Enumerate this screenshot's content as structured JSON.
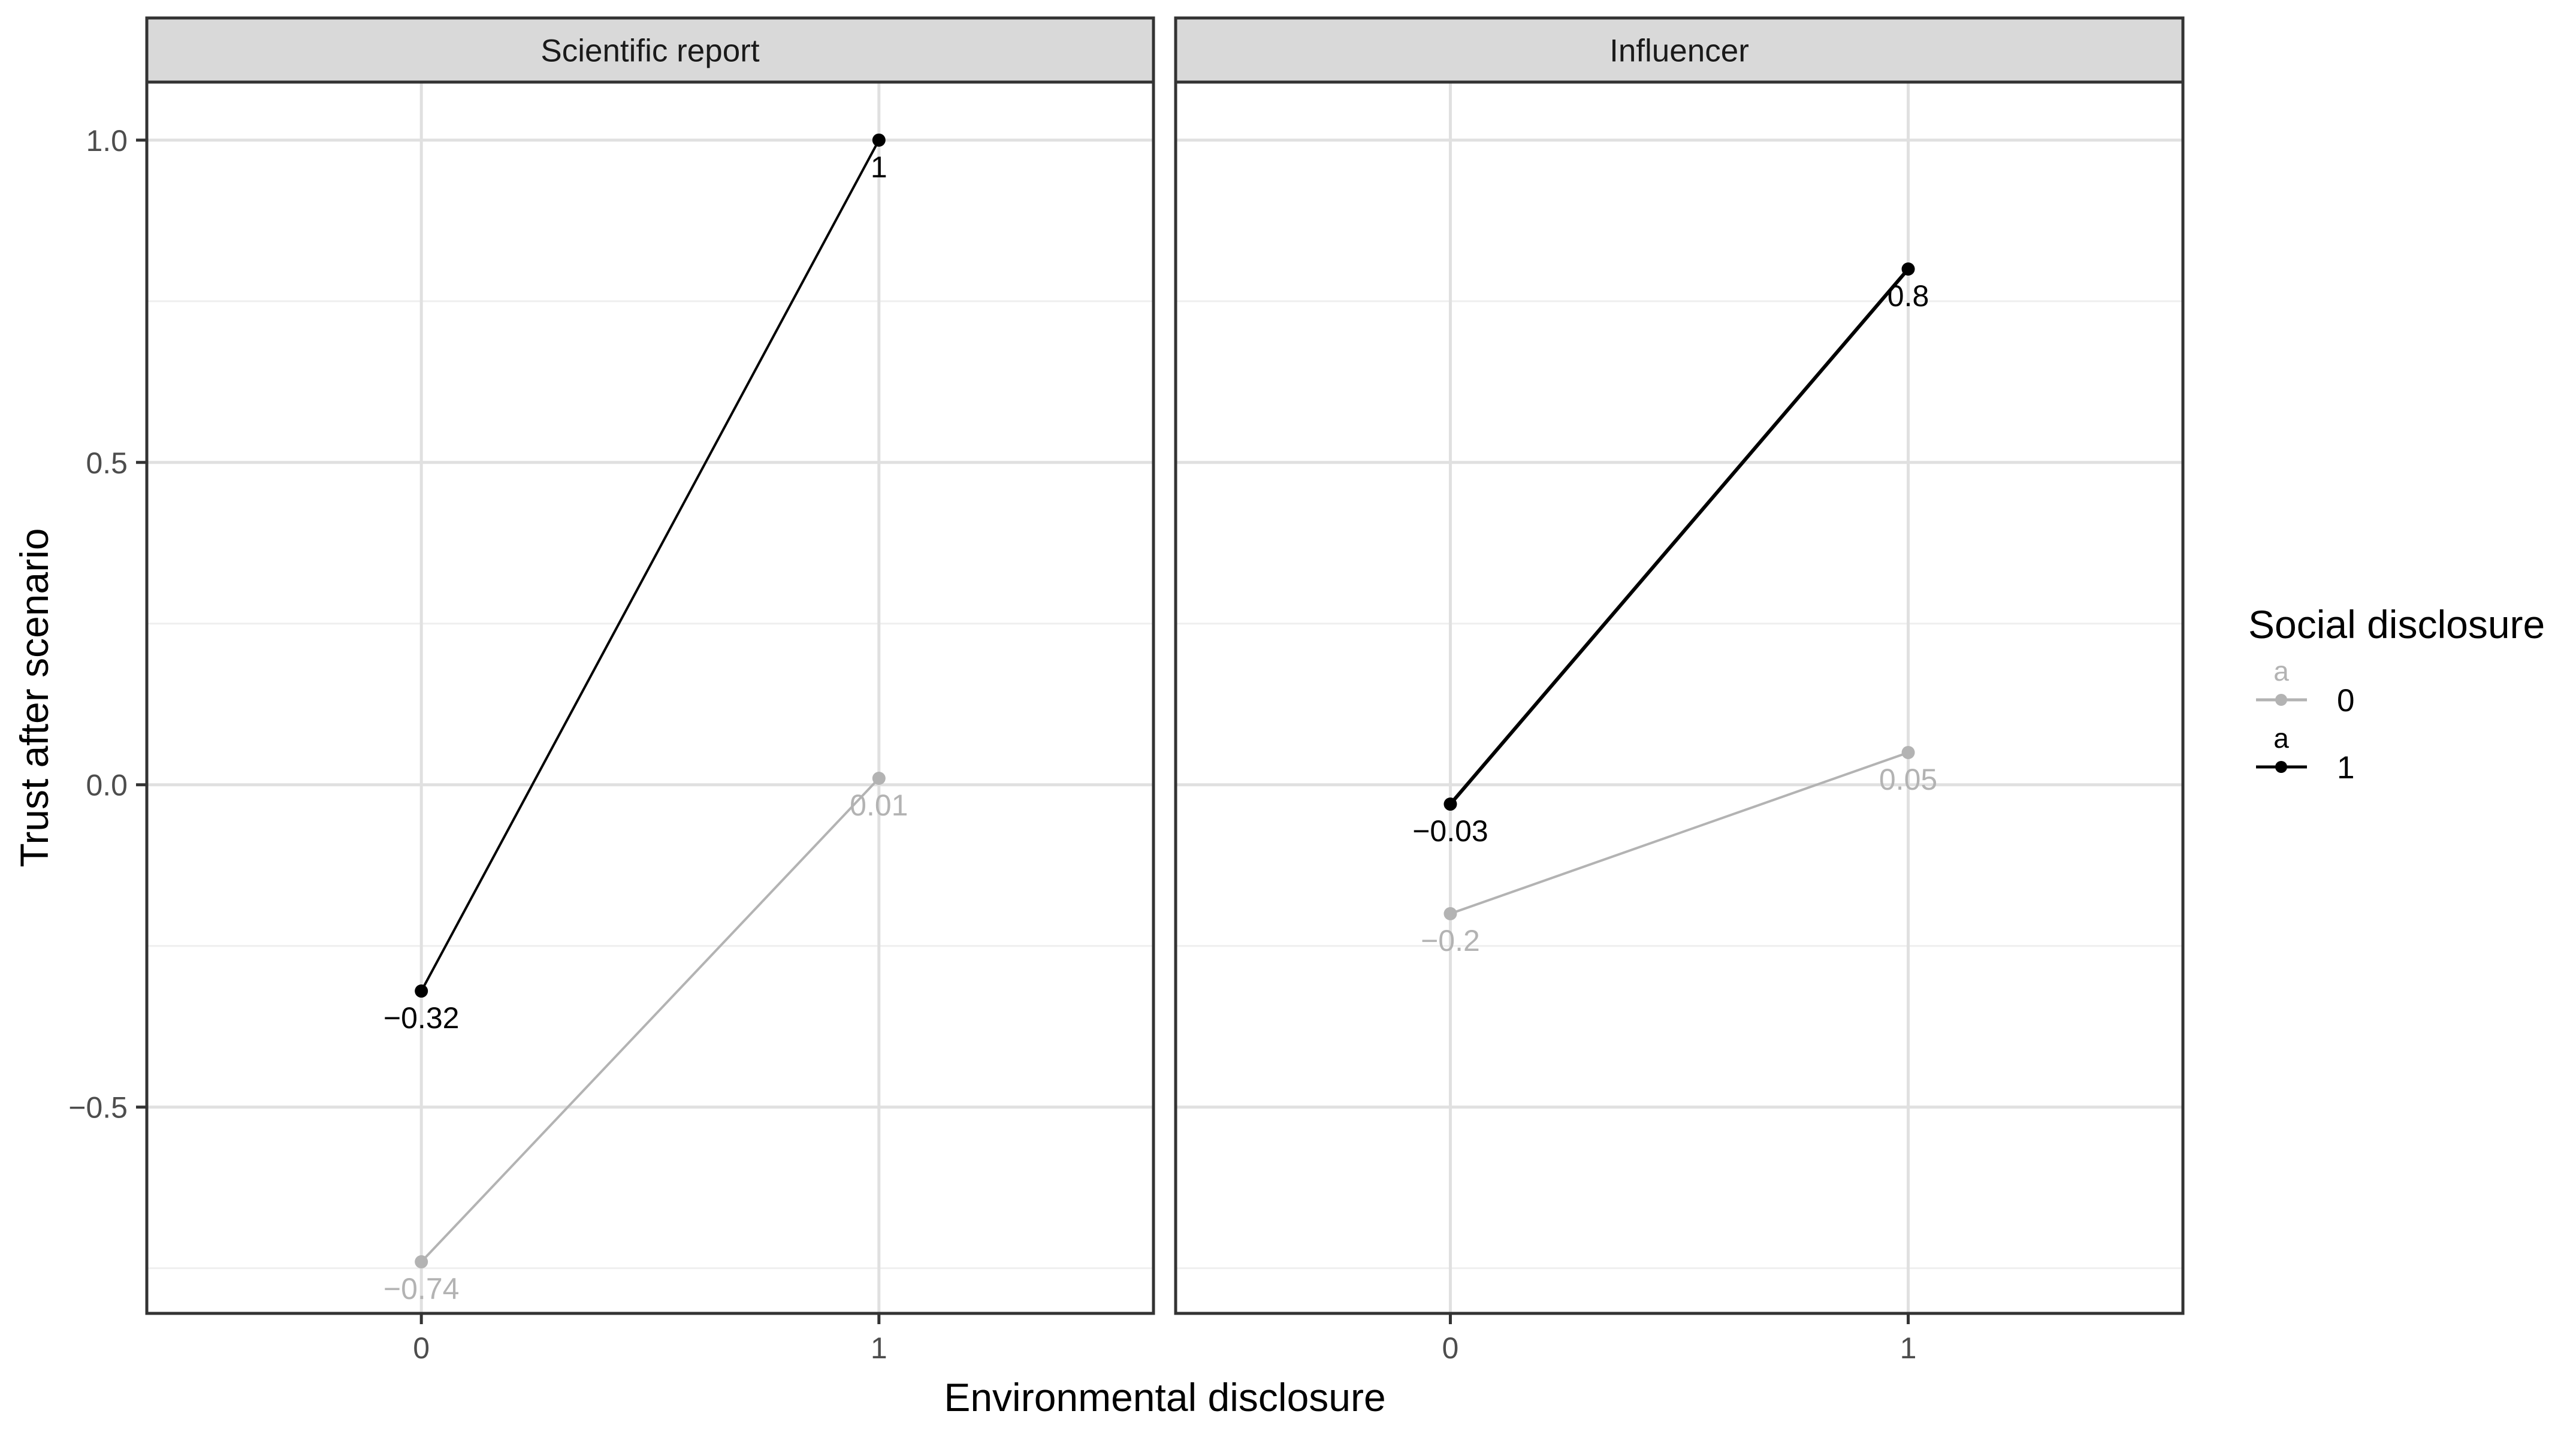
{
  "chart_data": {
    "type": "line",
    "panels": [
      {
        "strip_label": "Scientific report",
        "series": [
          {
            "name": "0",
            "x": [
              0,
              1
            ],
            "y": [
              -0.74,
              0.01
            ],
            "labels": [
              "−0.74",
              "0.01"
            ]
          },
          {
            "name": "1",
            "x": [
              0,
              1
            ],
            "y": [
              -0.32,
              1.0
            ],
            "labels": [
              "−0.32",
              "1"
            ]
          }
        ]
      },
      {
        "strip_label": "Influencer",
        "series": [
          {
            "name": "0",
            "x": [
              0,
              1
            ],
            "y": [
              -0.2,
              0.05
            ],
            "labels": [
              "−0.2",
              "0.05"
            ]
          },
          {
            "name": "1",
            "x": [
              0,
              1
            ],
            "y": [
              -0.03,
              0.8
            ],
            "labels": [
              "−0.03",
              "0.8"
            ]
          }
        ]
      }
    ],
    "xlabel": "Environmental disclosure",
    "ylabel": "Trust after scenario",
    "xticks": [
      "0",
      "1"
    ],
    "xlim": [
      -0.6,
      1.6
    ],
    "yticks": [
      1.0,
      0.5,
      0.0,
      -0.5
    ],
    "ytick_labels": [
      "1.0",
      "0.5",
      "0.0",
      "−0.5"
    ],
    "ylim": [
      -0.82,
      1.09
    ],
    "grid": true,
    "legend": {
      "title": "Social disclosure",
      "position": "right",
      "key_glyph_text": "a",
      "entries": [
        {
          "label": "0",
          "color": "#b3b3b3"
        },
        {
          "label": "1",
          "color": "#000000"
        }
      ]
    },
    "colors": {
      "0": "#b3b3b3",
      "1": "#000000"
    }
  }
}
